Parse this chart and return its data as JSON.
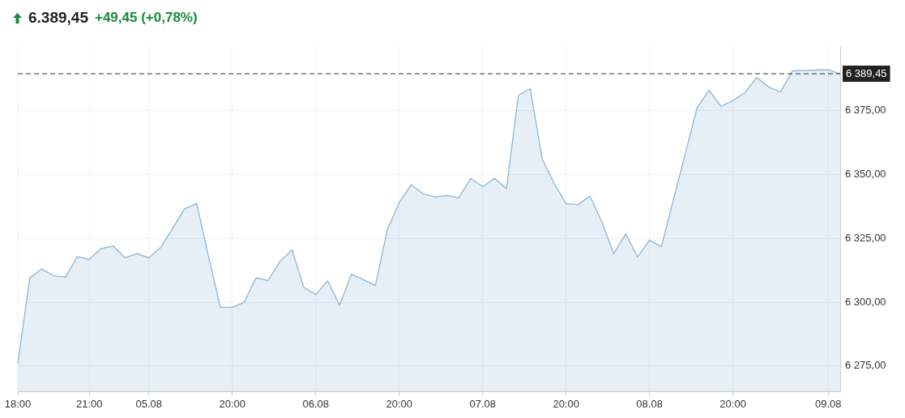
{
  "chart_data": {
    "type": "area",
    "title": "6.389,45",
    "subtitle": "+49,45 (+0,78%)",
    "categories": [
      "18:00",
      null,
      null,
      null,
      null,
      null,
      "21:00",
      null,
      null,
      null,
      null,
      "05.08",
      null,
      null,
      null,
      null,
      null,
      null,
      "20:00",
      null,
      null,
      null,
      null,
      null,
      null,
      "06.08",
      null,
      null,
      null,
      null,
      null,
      null,
      "20:00",
      null,
      null,
      null,
      null,
      null,
      null,
      "07.08",
      null,
      null,
      null,
      null,
      null,
      null,
      "20:00",
      null,
      null,
      null,
      null,
      null,
      null,
      "08.08",
      null,
      null,
      null,
      null,
      null,
      null,
      "20:00",
      null,
      null,
      null,
      null,
      null,
      null,
      null,
      "09.08",
      null
    ],
    "series": [
      {
        "color": "#8db5d6",
        "values": [
          6276,
          6309.5,
          6313,
          6310.4,
          6309.8,
          6317.8,
          6316.8,
          6321,
          6322,
          6317.4,
          6319,
          6317.4,
          6321.5,
          6329,
          6336.6,
          6338.7,
          6318,
          6298,
          6298,
          6300,
          6309.6,
          6308.5,
          6316,
          6320.5,
          6305.8,
          6303,
          6308.4,
          6298.8,
          6311,
          6308.8,
          6306.5,
          6328.3,
          6339,
          6346,
          6342.5,
          6341.2,
          6341.8,
          6340.9,
          6348.5,
          6345.2,
          6348.5,
          6344.5,
          6381,
          6383.6,
          6356,
          6346.5,
          6338.6,
          6338.2,
          6341.6,
          6331.5,
          6319,
          6326.7,
          6317.7,
          6324.3,
          6321.7,
          6340,
          6358,
          6376.3,
          6383,
          6376.7,
          6379,
          6382,
          6388,
          6384.3,
          6382.3,
          6390.6,
          6390.7,
          6390.9,
          6391,
          6389.45
        ]
      }
    ],
    "ylim": [
      6265,
      6400
    ],
    "yticks": [
      {
        "value": 6275,
        "label": "6 275,00"
      },
      {
        "value": 6300,
        "label": "6 300,00"
      },
      {
        "value": 6325,
        "label": "6 325,00"
      },
      {
        "value": 6350,
        "label": "6 350,00"
      },
      {
        "value": 6375,
        "label": "6 375,00"
      }
    ],
    "ref_lines": [
      {
        "axis": "y",
        "value": 6389.45,
        "label": "6 389,45",
        "color": "#333333",
        "line_style": "dashed"
      }
    ],
    "grid": true,
    "legend": false,
    "marker": "none",
    "line_style": "solid"
  }
}
